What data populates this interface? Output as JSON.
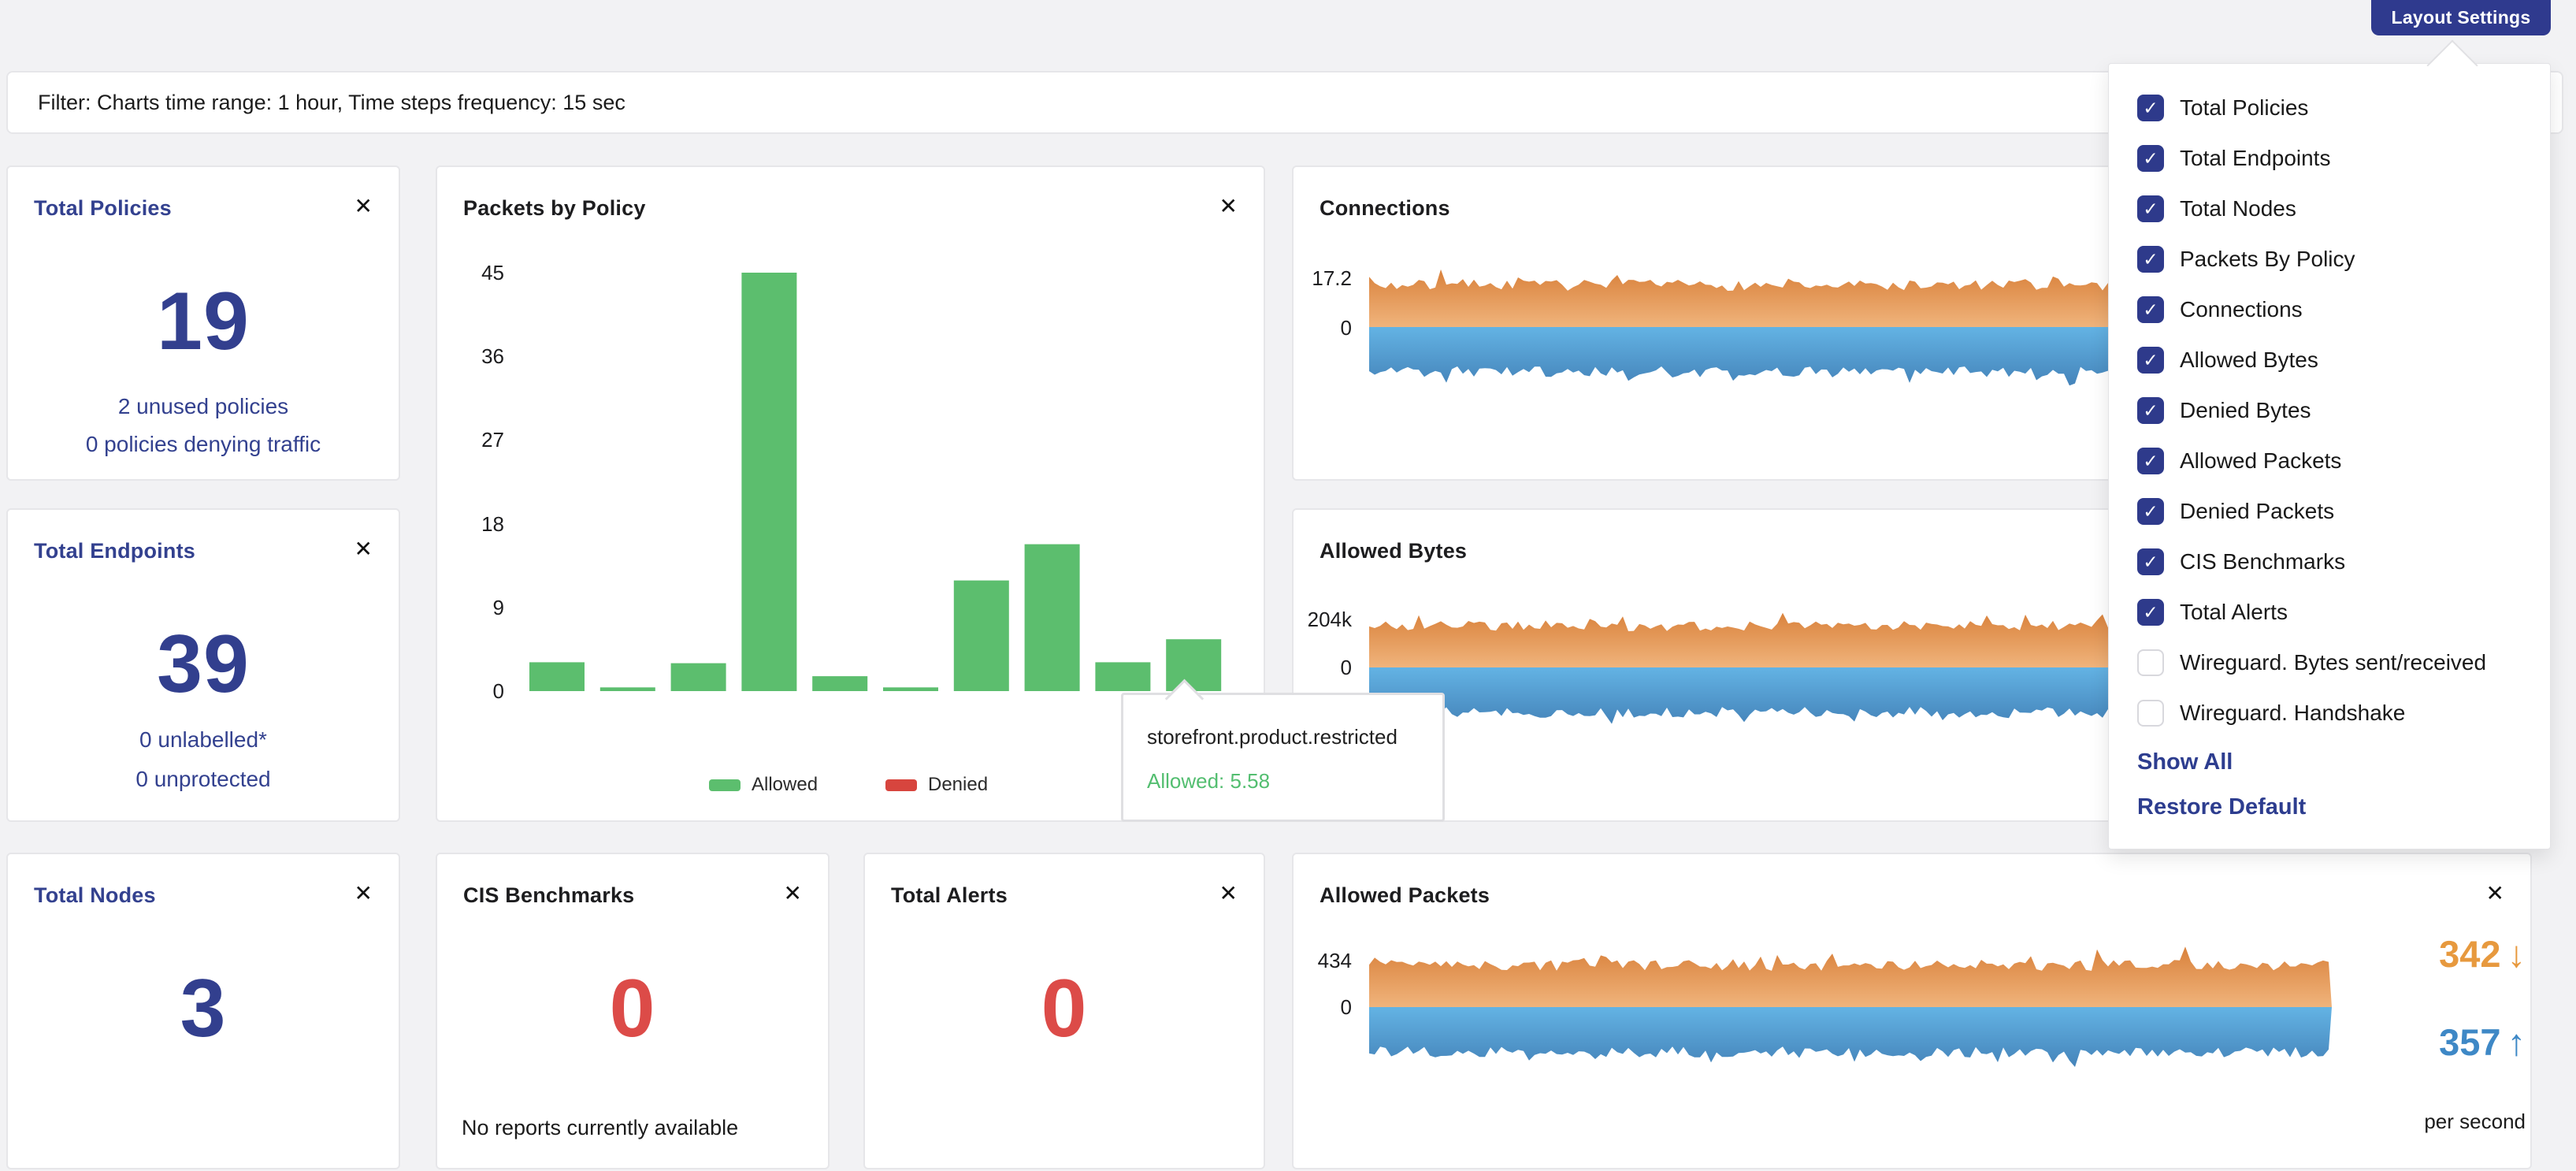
{
  "topbar": {
    "layout_settings_label": "Layout Settings"
  },
  "filter_bar": {
    "text": "Filter: Charts time range: 1 hour, Time steps frequency: 15 sec"
  },
  "icons": {
    "close": "✕",
    "check": "✓",
    "arrow_down": "↓",
    "arrow_up": "↑"
  },
  "layout_menu": {
    "items": [
      {
        "label": "Total Policies",
        "checked": true
      },
      {
        "label": "Total Endpoints",
        "checked": true
      },
      {
        "label": "Total Nodes",
        "checked": true
      },
      {
        "label": "Packets By Policy",
        "checked": true
      },
      {
        "label": "Connections",
        "checked": true
      },
      {
        "label": "Allowed Bytes",
        "checked": true
      },
      {
        "label": "Denied Bytes",
        "checked": true
      },
      {
        "label": "Allowed Packets",
        "checked": true
      },
      {
        "label": "Denied Packets",
        "checked": true
      },
      {
        "label": "CIS Benchmarks",
        "checked": true
      },
      {
        "label": "Total Alerts",
        "checked": true
      },
      {
        "label": "Wireguard. Bytes sent/received",
        "checked": false
      },
      {
        "label": "Wireguard. Handshake",
        "checked": false
      }
    ],
    "show_all_label": "Show All",
    "restore_default_label": "Restore Default"
  },
  "cards": {
    "total_policies": {
      "title": "Total Policies",
      "value": "19",
      "line1": "2 unused policies",
      "line2": "0 policies denying traffic"
    },
    "packets_by_policy": {
      "title": "Packets by Policy"
    },
    "connections": {
      "title": "Connections"
    },
    "total_endpoints": {
      "title": "Total Endpoints",
      "value": "39",
      "line1": "0 unlabelled*",
      "line2": "0 unprotected"
    },
    "allowed_bytes": {
      "title": "Allowed Bytes"
    },
    "total_nodes": {
      "title": "Total Nodes",
      "value": "3"
    },
    "cis_benchmarks": {
      "title": "CIS Benchmarks",
      "value": "0",
      "note": "No reports currently available"
    },
    "total_alerts": {
      "title": "Total Alerts",
      "value": "0"
    },
    "allowed_packets": {
      "title": "Allowed Packets",
      "down_value": "342",
      "up_value": "357",
      "unit": "per second"
    }
  },
  "tooltip": {
    "title": "storefront.product.restricted",
    "value_label": "Allowed: 5.58"
  },
  "colors": {
    "accent_blue": "#2f3a8e",
    "stat_blue": "#323f8e",
    "stat_red": "#dc4b48",
    "bar_green": "#5cbe6e",
    "legend_red": "#d7453e",
    "tooltip_green": "#53be70",
    "area_orange_top": "#d9813b",
    "area_orange_bottom": "#f0b47c",
    "area_blue_top": "#63b3e4",
    "area_blue_bottom": "#4584ba",
    "stat_orange_text": "#e7993e",
    "stat_blue_text": "#3e88c6"
  },
  "chart_data": [
    {
      "id": "packets_by_policy",
      "type": "bar",
      "title": "Packets by Policy",
      "ylim": [
        0,
        45
      ],
      "yticks": [
        0,
        9,
        18,
        27,
        36,
        45
      ],
      "legend_position": "bottom",
      "grid": false,
      "series": [
        {
          "name": "Allowed",
          "color": "#5cbe6e",
          "values": [
            3.1,
            0.4,
            3.0,
            45,
            1.6,
            0.4,
            11.9,
            15.8,
            3.1,
            5.58
          ]
        },
        {
          "name": "Denied",
          "color": "#d7453e",
          "values": [
            0,
            0,
            0,
            0,
            0,
            0,
            0,
            0,
            0,
            0
          ]
        }
      ],
      "tooltip": {
        "category": "storefront.product.restricted",
        "series": "Allowed",
        "value": 5.58
      }
    },
    {
      "id": "connections",
      "type": "area",
      "title": "Connections",
      "yticks": [
        "17.2",
        "0"
      ],
      "ymax": 17.2,
      "ymin": 0,
      "description": "mirrored in/out area band oscillating near the 17.2 max, orange above zero line, blue mirrored below"
    },
    {
      "id": "allowed_bytes",
      "type": "area",
      "title": "Allowed Bytes",
      "yticks": [
        "204k",
        "0"
      ],
      "ymax": 204000,
      "ymin": 0,
      "description": "mirrored in/out area band oscillating near the 204k max, orange above zero line, blue mirrored below"
    },
    {
      "id": "allowed_packets",
      "type": "area",
      "title": "Allowed Packets",
      "yticks": [
        "434",
        "0"
      ],
      "ymax": 434,
      "ymin": 0,
      "stats": {
        "down": 342,
        "up": 357,
        "unit": "per second"
      },
      "description": "mirrored in/out area band oscillating near the 434 max, orange above zero line, blue mirrored below"
    }
  ]
}
